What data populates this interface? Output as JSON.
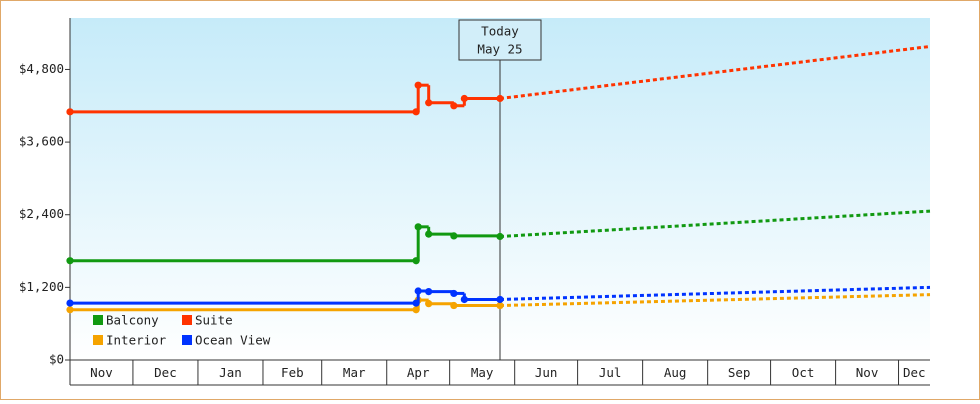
{
  "chart_data": {
    "type": "step-line",
    "xlim": [
      0,
      410
    ],
    "xticks": [
      {
        "value": 0,
        "label": "Nov"
      },
      {
        "value": 30,
        "label": "Dec"
      },
      {
        "value": 61,
        "label": "Jan"
      },
      {
        "value": 92,
        "label": "Feb"
      },
      {
        "value": 120,
        "label": "Mar"
      },
      {
        "value": 151,
        "label": "Apr"
      },
      {
        "value": 181,
        "label": "May"
      },
      {
        "value": 212,
        "label": "Jun"
      },
      {
        "value": 242,
        "label": "Jul"
      },
      {
        "value": 273,
        "label": "Aug"
      },
      {
        "value": 304,
        "label": "Sep"
      },
      {
        "value": 334,
        "label": "Oct"
      },
      {
        "value": 365,
        "label": "Nov"
      },
      {
        "value": 395,
        "label": "Dec"
      }
    ],
    "ylim": [
      0,
      5650
    ],
    "yticks": [
      {
        "value": 0,
        "label": "$0"
      },
      {
        "value": 1200,
        "label": "$1,200"
      },
      {
        "value": 2400,
        "label": "$2,400"
      },
      {
        "value": 3600,
        "label": "$3,600"
      },
      {
        "value": 4800,
        "label": "$4,800"
      }
    ],
    "annotation": {
      "lines": [
        "Today",
        "May 25"
      ],
      "x": 205
    },
    "series": [
      {
        "name": "Balcony",
        "color": "#119911",
        "x": [
          0,
          165,
          166,
          171,
          183,
          205
        ],
        "values": [
          1640,
          1640,
          2200,
          2080,
          2050,
          2040
        ],
        "forecast_x": [
          205,
          410
        ],
        "forecast_values": [
          2040,
          2460
        ]
      },
      {
        "name": "Suite",
        "color": "#ff3300",
        "x": [
          0,
          165,
          166,
          171,
          183,
          188,
          205
        ],
        "values": [
          4100,
          4100,
          4540,
          4250,
          4200,
          4320,
          4320
        ],
        "forecast_x": [
          205,
          410
        ],
        "forecast_values": [
          4320,
          5180
        ]
      },
      {
        "name": "Interior",
        "color": "#f5a300",
        "x": [
          0,
          165,
          166,
          171,
          183,
          205
        ],
        "values": [
          830,
          830,
          990,
          930,
          900,
          900
        ],
        "forecast_x": [
          205,
          410
        ],
        "forecast_values": [
          900,
          1080
        ]
      },
      {
        "name": "Ocean View",
        "color": "#0033ff",
        "x": [
          0,
          165,
          166,
          171,
          183,
          188,
          205
        ],
        "values": [
          940,
          940,
          1140,
          1130,
          1100,
          1000,
          1000
        ],
        "forecast_x": [
          205,
          410
        ],
        "forecast_values": [
          1000,
          1200
        ]
      }
    ]
  }
}
